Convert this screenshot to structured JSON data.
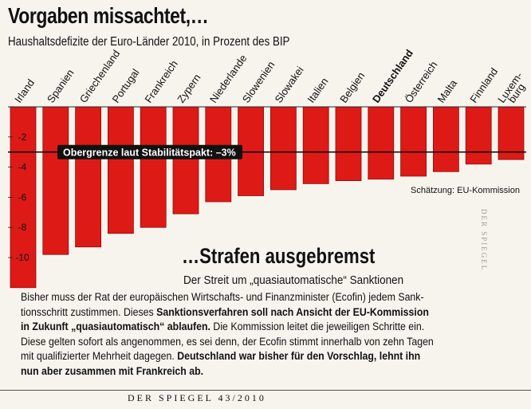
{
  "header": {
    "title": "Vorgaben missachtet,…",
    "subtitle": "Haushaltsdefizite der Euro-Länder 2010, in Prozent des BIP"
  },
  "chart_data": {
    "type": "bar",
    "title": "Vorgaben missachtet,…",
    "subtitle": "Haushaltsdefizite der Euro-Länder 2010, in Prozent des BIP",
    "categories": [
      "Irland",
      "Spanien",
      "Griechenland",
      "Portugal",
      "Frankreich",
      "Zypern",
      "Niederlande",
      "Slowenien",
      "Slowakei",
      "Italien",
      "Belgien",
      "Deutschland",
      "Österreich",
      "Malta",
      "Finnland",
      "Luxemburg"
    ],
    "category_lines": [
      [
        "Irland"
      ],
      [
        "Spanien"
      ],
      [
        "Griechenland"
      ],
      [
        "Portugal"
      ],
      [
        "Frankreich"
      ],
      [
        "Zypern"
      ],
      [
        "Niederlande"
      ],
      [
        "Slowenien"
      ],
      [
        "Slowakei"
      ],
      [
        "Italien"
      ],
      [
        "Belgien"
      ],
      [
        "Deutschland"
      ],
      [
        "Österreich"
      ],
      [
        "Malta"
      ],
      [
        "Finnland"
      ],
      [
        "Luxem-",
        "burg"
      ]
    ],
    "highlight_category": "Deutschland",
    "values": [
      -12.0,
      -9.8,
      -9.3,
      -8.4,
      -8.0,
      -7.1,
      -6.3,
      -5.9,
      -5.5,
      -5.1,
      -4.9,
      -4.8,
      -4.6,
      -4.3,
      -3.8,
      -3.5
    ],
    "yticks": [
      -2,
      -4,
      -6,
      -8,
      -10
    ],
    "ytick_labels": [
      "-2",
      "-4",
      "-6",
      "-8",
      "-10"
    ],
    "ylim": [
      -12,
      0
    ],
    "threshold": {
      "value": -3,
      "label": "Obergrenze laut Stabilitätspakt: –3%"
    },
    "annotation": "Schätzung: EU-Kommission",
    "colors": {
      "bar": "#de1a16",
      "bar_edge": "#8e0b08",
      "threshold_box": "#111111",
      "threshold_line": "#111111"
    }
  },
  "watermark": "DER SPIEGEL",
  "article": {
    "headline": "…Strafen ausgebremst",
    "subheadline": "Der Streit um „quasiautomatische“ Sanktionen",
    "lines": [
      [
        {
          "t": "Bisher muss der Rat der europäischen Wirtschafts- und Finanzminister (Ecofin) jedem Sank-",
          "b": false
        }
      ],
      [
        {
          "t": "tionsschritt zustimmen. Dieses ",
          "b": false
        },
        {
          "t": "Sanktionsverfahren soll nach Ansicht der EU-Kommission",
          "b": true
        }
      ],
      [
        {
          "t": "in Zukunft „quasiautomatisch“ ablaufen.",
          "b": true
        },
        {
          "t": " Die Kommission leitet die jeweiligen Schritte ein.",
          "b": false
        }
      ],
      [
        {
          "t": "Diese gelten sofort als angenommen, es sei denn, der Ecofin stimmt innerhalb von zehn Tagen",
          "b": false
        }
      ],
      [
        {
          "t": "mit qualifizierter Mehrheit dagegen. ",
          "b": false
        },
        {
          "t": "Deutschland war bisher für den Vorschlag, lehnt ihn",
          "b": true
        }
      ],
      [
        {
          "t": "nun aber zusammen mit Frankreich ab.",
          "b": true
        }
      ]
    ]
  },
  "footer": {
    "text": "DER SPIEGEL 43/2010"
  }
}
